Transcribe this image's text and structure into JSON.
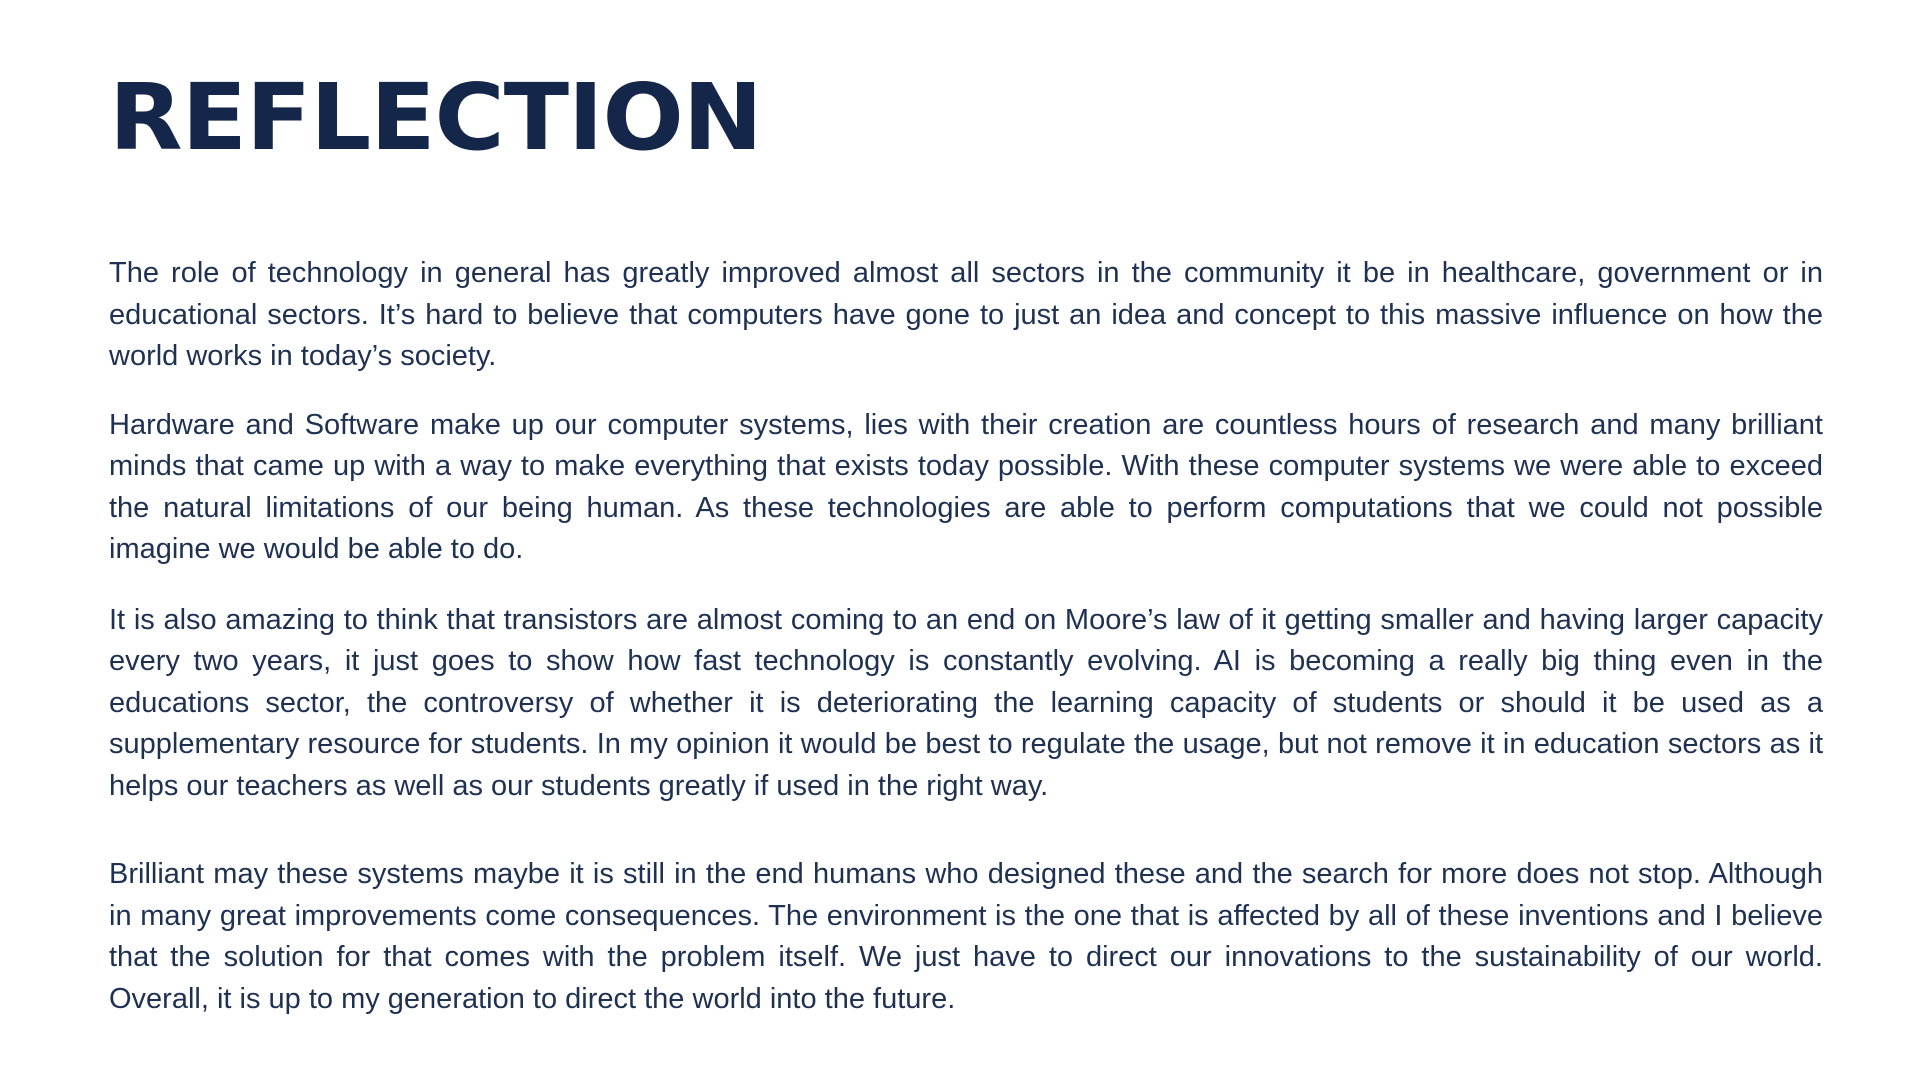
{
  "slide": {
    "title": "REFLECTION",
    "paragraphs": [
      "The role of technology in general has greatly improved almost all sectors in the community it be in healthcare, government or in educational sectors. It’s hard to believe that computers have gone to just an idea and concept to this massive influence on how the world works in today’s society.",
      "Hardware and Software make up our computer systems, lies with their creation are countless hours of research and many brilliant minds that came up with a way to make everything that exists today possible. With these computer systems we were able to exceed the natural limitations of our being human. As these technologies are able to perform computations that we could not possible imagine we would be able to do.",
      "It is also amazing to think that transistors are almost coming to an end on Moore’s law of it getting smaller and having larger capacity every two years, it just goes to show how fast technology is constantly evolving. AI is becoming a really big thing even in the educations sector, the controversy of whether it is deteriorating the learning capacity of students or should it be used as a supplementary resource for students.  In my opinion it would be best to regulate the usage, but not remove it in education sectors as it helps our teachers as well as our students greatly if used in the right way.",
      "Brilliant may these systems maybe it is still in the end humans who designed these and the search for more does not stop. Although in many great improvements come consequences. The environment is the one that is affected by all of these inventions and I believe that the solution for that comes with the problem itself. We just have to direct our innovations to the sustainability of our world. Overall, it is up to my generation to direct the world into the future."
    ]
  },
  "colors": {
    "title": "#14274a",
    "text": "#1f3152",
    "background": "#ffffff"
  }
}
